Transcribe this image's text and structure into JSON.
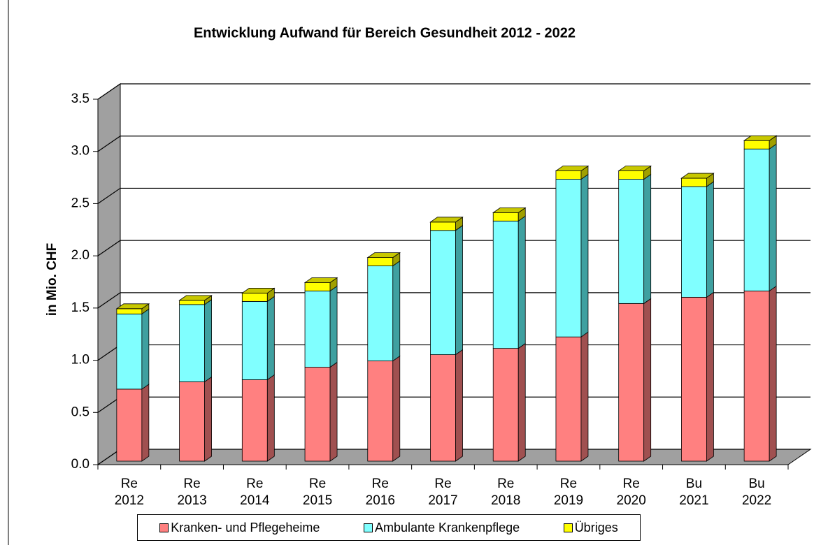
{
  "chart_data": {
    "type": "stacked-bar-3d",
    "title": "Entwicklung Aufwand für Bereich Gesundheit 2012 - 2022",
    "y_label": "in Mio. CHF",
    "categories": [
      "Re 2012",
      "Re 2013",
      "Re 2014",
      "Re 2015",
      "Re 2016",
      "Re 2017",
      "Re 2018",
      "Re 2019",
      "Re 2020",
      "Bu 2021",
      "Bu 2022"
    ],
    "series": [
      {
        "name": "Kranken- und Pflegeheime",
        "color": "#ff8080",
        "values": [
          0.69,
          0.76,
          0.78,
          0.9,
          0.96,
          1.02,
          1.08,
          1.19,
          1.51,
          1.57,
          1.63
        ]
      },
      {
        "name": "Ambulante Krankenpflege",
        "color": "#80ffff",
        "values": [
          0.72,
          0.74,
          0.75,
          0.73,
          0.91,
          1.19,
          1.22,
          1.51,
          1.19,
          1.06,
          1.36
        ]
      },
      {
        "name": "Übriges",
        "color": "#ffff00",
        "values": [
          0.05,
          0.04,
          0.08,
          0.08,
          0.08,
          0.08,
          0.08,
          0.08,
          0.08,
          0.08,
          0.08
        ]
      }
    ],
    "ylim": [
      0,
      3.5
    ],
    "yticks": [
      {
        "value": 0,
        "label": "0.0"
      },
      {
        "value": 0.5,
        "label": "0.5"
      },
      {
        "value": 1,
        "label": "1.0"
      },
      {
        "value": 1.5,
        "label": "1.5"
      },
      {
        "value": 2,
        "label": "2.0"
      },
      {
        "value": 2.5,
        "label": "2.5"
      },
      {
        "value": 3,
        "label": "3.0"
      },
      {
        "value": 3.5,
        "label": "3.5"
      }
    ],
    "grid": true
  }
}
